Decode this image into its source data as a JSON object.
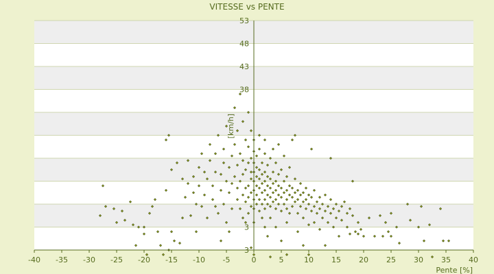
{
  "chart_data": {
    "type": "scatter",
    "title": "VITESSE vs PENTE",
    "xlabel": "Pente [%]",
    "ylabel": "[km/h]",
    "xlim": [
      -40,
      40
    ],
    "ylim": [
      3,
      53
    ],
    "x_ticks": [
      -40,
      -35,
      -30,
      -25,
      -20,
      -15,
      -10,
      -5,
      0,
      5,
      10,
      15,
      20,
      25,
      30,
      35,
      40
    ],
    "y_ticks": [
      3,
      8,
      13,
      18,
      23,
      28,
      33,
      38,
      43,
      48,
      53
    ],
    "y_tick_labels_visible": [
      "3",
      "3",
      "38",
      "43",
      "48",
      "53"
    ],
    "grid": true,
    "colors": {
      "background": "#eef2cf",
      "plot_band_light": "#ffffff",
      "plot_band_dark": "#eeeeee",
      "gridline": "#cfd6b0",
      "axis": "#556b1e",
      "point_fill": "#9aa61f",
      "point_stroke": "#3b4a10",
      "text": "#556b1e"
    },
    "series": [
      {
        "points": [
          [
            -28,
            10.5
          ],
          [
            -27.5,
            17
          ],
          [
            -27,
            12.5
          ],
          [
            -25.5,
            12
          ],
          [
            -25,
            9
          ],
          [
            -24,
            11.5
          ],
          [
            -23.5,
            9.5
          ],
          [
            -22.5,
            13.5
          ],
          [
            -22,
            8.5
          ],
          [
            -21.5,
            4
          ],
          [
            -21,
            8
          ],
          [
            -20,
            6.5
          ],
          [
            -20,
            8
          ],
          [
            -19.5,
            2
          ],
          [
            -19,
            11
          ],
          [
            -18.5,
            12.5
          ],
          [
            -18,
            14
          ],
          [
            -17.5,
            7
          ],
          [
            -17,
            4
          ],
          [
            -16.5,
            2
          ],
          [
            -16,
            16
          ],
          [
            -16,
            27
          ],
          [
            -15.5,
            3
          ],
          [
            -15.5,
            28
          ],
          [
            -15,
            7
          ],
          [
            -15,
            20.5
          ],
          [
            -14.5,
            5
          ],
          [
            -14,
            22
          ],
          [
            -13.5,
            4.5
          ],
          [
            -13,
            10
          ],
          [
            -13,
            18.5
          ],
          [
            -12.5,
            14.5
          ],
          [
            -12,
            17.5
          ],
          [
            -12,
            22.5
          ],
          [
            -11.5,
            10.5
          ],
          [
            -11,
            15.5
          ],
          [
            -11,
            19
          ],
          [
            -10.5,
            13
          ],
          [
            -10.5,
            7
          ],
          [
            -10,
            21
          ],
          [
            -10,
            17
          ],
          [
            -9.5,
            12.5
          ],
          [
            -9.5,
            24
          ],
          [
            -9,
            20
          ],
          [
            -9,
            15
          ],
          [
            -8.5,
            18.5
          ],
          [
            -8.5,
            10
          ],
          [
            -8,
            22.5
          ],
          [
            -8,
            26
          ],
          [
            -7.5,
            14
          ],
          [
            -7.5,
            17
          ],
          [
            -7,
            20
          ],
          [
            -7,
            12.5
          ],
          [
            -7,
            24
          ],
          [
            -6.5,
            11
          ],
          [
            -6.5,
            28
          ],
          [
            -6,
            16
          ],
          [
            -6,
            19.5
          ],
          [
            -6,
            5
          ],
          [
            -5.5,
            22
          ],
          [
            -5.5,
            13
          ],
          [
            -5.5,
            25
          ],
          [
            -5,
            18
          ],
          [
            -5,
            30
          ],
          [
            -5,
            9
          ],
          [
            -4.5,
            15.5
          ],
          [
            -4.5,
            21
          ],
          [
            -4.5,
            7
          ],
          [
            -4,
            17.5
          ],
          [
            -4,
            23.5
          ],
          [
            -4,
            12
          ],
          [
            -3.5,
            19
          ],
          [
            -3.5,
            34
          ],
          [
            -3.5,
            26
          ],
          [
            -3,
            14
          ],
          [
            -3,
            16.5
          ],
          [
            -3,
            21.5
          ],
          [
            -3,
            29
          ],
          [
            -2.5,
            18
          ],
          [
            -2.5,
            12
          ],
          [
            -2.5,
            24
          ],
          [
            -2.5,
            37
          ],
          [
            -2,
            15
          ],
          [
            -2,
            19.5
          ],
          [
            -2,
            22.5
          ],
          [
            -2,
            10
          ],
          [
            -2,
            31
          ],
          [
            -1.5,
            16.5
          ],
          [
            -1.5,
            13.5
          ],
          [
            -1.5,
            20.5
          ],
          [
            -1.5,
            27
          ],
          [
            -1.5,
            9
          ],
          [
            -1,
            17
          ],
          [
            -1,
            14.5
          ],
          [
            -1,
            22
          ],
          [
            -1,
            25.5
          ],
          [
            -1,
            11
          ],
          [
            -1,
            33
          ],
          [
            -0.5,
            18.5
          ],
          [
            -0.5,
            15.5
          ],
          [
            -0.5,
            20
          ],
          [
            -0.5,
            23
          ],
          [
            -0.5,
            12.5
          ],
          [
            -0.5,
            29
          ],
          [
            -0.5,
            3.5
          ],
          [
            0,
            16
          ],
          [
            0,
            18
          ],
          [
            0,
            20
          ],
          [
            0,
            14
          ],
          [
            0,
            22
          ],
          [
            0,
            24.5
          ],
          [
            0,
            12
          ],
          [
            0,
            27
          ],
          [
            0,
            9
          ],
          [
            0,
            2
          ],
          [
            0.5,
            17
          ],
          [
            0.5,
            19
          ],
          [
            0.5,
            15
          ],
          [
            0.5,
            21
          ],
          [
            0.5,
            13
          ],
          [
            0.5,
            23.5
          ],
          [
            1,
            16.5
          ],
          [
            1,
            18.5
          ],
          [
            1,
            14
          ],
          [
            1,
            20.5
          ],
          [
            1,
            11.5
          ],
          [
            1,
            25
          ],
          [
            1,
            28
          ],
          [
            1.5,
            15.5
          ],
          [
            1.5,
            17.5
          ],
          [
            1.5,
            13
          ],
          [
            1.5,
            19.5
          ],
          [
            1.5,
            22
          ],
          [
            1.5,
            10
          ],
          [
            2,
            16
          ],
          [
            2,
            18
          ],
          [
            2,
            14
          ],
          [
            2,
            12
          ],
          [
            2,
            20
          ],
          [
            2,
            24
          ],
          [
            2,
            27
          ],
          [
            2,
            8
          ],
          [
            2.5,
            15
          ],
          [
            2.5,
            17
          ],
          [
            2.5,
            13
          ],
          [
            2.5,
            19
          ],
          [
            2.5,
            21.5
          ],
          [
            2.5,
            6
          ],
          [
            3,
            16.5
          ],
          [
            3,
            14.5
          ],
          [
            3,
            18.5
          ],
          [
            3,
            12.5
          ],
          [
            3,
            23
          ],
          [
            3,
            10
          ],
          [
            3,
            1.5
          ],
          [
            3.5,
            15.5
          ],
          [
            3.5,
            17.5
          ],
          [
            3.5,
            13.5
          ],
          [
            3.5,
            20
          ],
          [
            3.5,
            25
          ],
          [
            4,
            16
          ],
          [
            4,
            14
          ],
          [
            4,
            18
          ],
          [
            4,
            12
          ],
          [
            4,
            22
          ],
          [
            4,
            8
          ],
          [
            4.5,
            15
          ],
          [
            4.5,
            17
          ],
          [
            4.5,
            13
          ],
          [
            4.5,
            19.5
          ],
          [
            4.5,
            26
          ],
          [
            5,
            16.5
          ],
          [
            5,
            14.5
          ],
          [
            5,
            11.5
          ],
          [
            5,
            20.5
          ],
          [
            5,
            5
          ],
          [
            5.5,
            15.5
          ],
          [
            5.5,
            13
          ],
          [
            5.5,
            18
          ],
          [
            5.5,
            23.5
          ],
          [
            6,
            16
          ],
          [
            6,
            14
          ],
          [
            6,
            12
          ],
          [
            6,
            19
          ],
          [
            6,
            9
          ],
          [
            6,
            2
          ],
          [
            6.5,
            15
          ],
          [
            6.5,
            17
          ],
          [
            6.5,
            21
          ],
          [
            6.5,
            11
          ],
          [
            7,
            14.5
          ],
          [
            7,
            16.5
          ],
          [
            7,
            12.5
          ],
          [
            7,
            27
          ],
          [
            7.5,
            15.5
          ],
          [
            7.5,
            13.5
          ],
          [
            7.5,
            18.5
          ],
          [
            7.5,
            28
          ],
          [
            8,
            14
          ],
          [
            8,
            16
          ],
          [
            8,
            11
          ],
          [
            8,
            7
          ],
          [
            8.5,
            15
          ],
          [
            8.5,
            12.5
          ],
          [
            8.5,
            17.5
          ],
          [
            9,
            13.5
          ],
          [
            9,
            15.5
          ],
          [
            9,
            10
          ],
          [
            9,
            4
          ],
          [
            9.5,
            14
          ],
          [
            9.5,
            12
          ],
          [
            9.5,
            16.5
          ],
          [
            10,
            13
          ],
          [
            10,
            15
          ],
          [
            10,
            8.5
          ],
          [
            10,
            2
          ],
          [
            10.5,
            14.5
          ],
          [
            10.5,
            11.5
          ],
          [
            10.5,
            25
          ],
          [
            11,
            12.5
          ],
          [
            11,
            16
          ],
          [
            11,
            9
          ],
          [
            11.5,
            13.5
          ],
          [
            11.5,
            11
          ],
          [
            12,
            14.5
          ],
          [
            12,
            12
          ],
          [
            12,
            7.5
          ],
          [
            12.5,
            13
          ],
          [
            12.5,
            10
          ],
          [
            13,
            15
          ],
          [
            13,
            11.5
          ],
          [
            13,
            4
          ],
          [
            13.5,
            12.5
          ],
          [
            13.5,
            9
          ],
          [
            14,
            14
          ],
          [
            14,
            11
          ],
          [
            14,
            23
          ],
          [
            14.5,
            12
          ],
          [
            14.5,
            8
          ],
          [
            15,
            13
          ],
          [
            15,
            10
          ],
          [
            15.5,
            11.5
          ],
          [
            15.5,
            6
          ],
          [
            16,
            12.5
          ],
          [
            16,
            9.5
          ],
          [
            16.5,
            13.5
          ],
          [
            17,
            11
          ],
          [
            17,
            8
          ],
          [
            17.5,
            12
          ],
          [
            17.5,
            6.5
          ],
          [
            18,
            10.5
          ],
          [
            18,
            18
          ],
          [
            18.5,
            7
          ],
          [
            19,
            9
          ],
          [
            19,
            6.5
          ],
          [
            19.5,
            7.5
          ],
          [
            20,
            6
          ],
          [
            21,
            10
          ],
          [
            22,
            6
          ],
          [
            23,
            10.5
          ],
          [
            23.5,
            6
          ],
          [
            24,
            9
          ],
          [
            24.5,
            7
          ],
          [
            25,
            11
          ],
          [
            25,
            6
          ],
          [
            26,
            8
          ],
          [
            26.5,
            4.5
          ],
          [
            28,
            13
          ],
          [
            28.5,
            9.5
          ],
          [
            30,
            8
          ],
          [
            30.5,
            12.5
          ],
          [
            31,
            5
          ],
          [
            32,
            8.5
          ],
          [
            32.5,
            1.5
          ],
          [
            34,
            12
          ],
          [
            34.5,
            5
          ],
          [
            35.5,
            5
          ]
        ]
      }
    ]
  }
}
